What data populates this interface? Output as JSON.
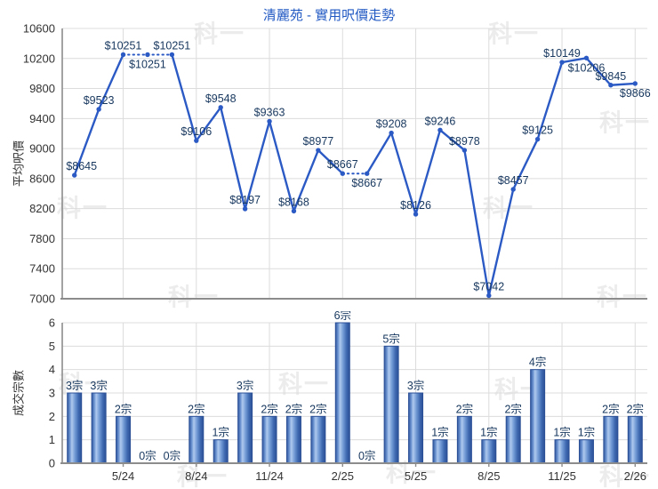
{
  "title": "清麗苑 - 實用呎價走勢",
  "watermark": {
    "text": "科一"
  },
  "colors": {
    "title": "#2159C3",
    "line": "#2C5AC5",
    "data_label": "#17375E",
    "bar_border": "#2B4F96",
    "grid": "#DCDCDC",
    "axis": "#8C8C8C",
    "axis_text": "#333333",
    "watermark": "#ECECEC",
    "background": "#FFFFFF"
  },
  "chart_data": [
    {
      "type": "line",
      "title": "清麗苑 - 實用呎價走勢",
      "ylabel": "平均呎價",
      "ylim": [
        7000,
        10600
      ],
      "ytick_step": 400,
      "ytick_labels": [
        "7000",
        "7400",
        "7800",
        "8200",
        "8600",
        "9000",
        "9400",
        "9800",
        "10200",
        "10600"
      ],
      "n_points": 24,
      "values": [
        8645,
        9523,
        10251,
        10251,
        10251,
        9106,
        9548,
        8197,
        9363,
        8168,
        8977,
        8667,
        8667,
        9208,
        8126,
        9246,
        8978,
        7042,
        8457,
        9125,
        10149,
        10206,
        9845,
        9866
      ],
      "point_labels": [
        "$8645",
        "$9523",
        "$10251",
        "$10251",
        "$10251",
        "$9106",
        "$9548",
        "$8197",
        "$9363",
        "$8168",
        "$8977",
        "$8667",
        "$8667",
        "$9208",
        "$8126",
        "$9246",
        "$8978",
        "$7042",
        "$8457",
        "$9125",
        "$10149",
        "$10206",
        "$9845",
        "$9866"
      ],
      "dotted_segments": [
        [
          2,
          3
        ],
        [
          3,
          4
        ],
        [
          11,
          12
        ]
      ],
      "label_side": [
        "above",
        "above",
        "above",
        "below",
        "above",
        "above",
        "above",
        "above",
        "above",
        "above",
        "above",
        "above",
        "below",
        "above",
        "above",
        "above",
        "above",
        "above",
        "above",
        "above",
        "above",
        "below",
        "above",
        "below"
      ],
      "xtick_labels": [
        "5/24",
        "8/24",
        "11/24",
        "2/25",
        "5/25",
        "8/25",
        "11/25",
        "2/26"
      ],
      "xtick_indices": [
        2,
        5,
        8,
        11,
        14,
        17,
        20,
        23
      ],
      "grid": true,
      "legend": "none"
    },
    {
      "type": "bar",
      "ylabel": "成交宗數",
      "ylim": [
        0,
        6
      ],
      "ytick_step": 1,
      "ytick_labels": [
        "0",
        "1",
        "2",
        "3",
        "4",
        "5",
        "6"
      ],
      "values": [
        3,
        3,
        2,
        0,
        0,
        2,
        1,
        3,
        2,
        2,
        2,
        6,
        0,
        5,
        3,
        1,
        2,
        1,
        2,
        4,
        1,
        1,
        2,
        2
      ],
      "bar_labels": [
        "3宗",
        "3宗",
        "2宗",
        "0宗",
        "0宗",
        "2宗",
        "1宗",
        "3宗",
        "2宗",
        "2宗",
        "2宗",
        "6宗",
        "0宗",
        "5宗",
        "3宗",
        "1宗",
        "2宗",
        "1宗",
        "2宗",
        "4宗",
        "1宗",
        "1宗",
        "2宗",
        "2宗"
      ],
      "xtick_labels": [
        "5/24",
        "8/24",
        "11/24",
        "2/25",
        "5/25",
        "8/25",
        "11/25",
        "2/26"
      ],
      "xtick_indices": [
        2,
        5,
        8,
        11,
        14,
        17,
        20,
        23
      ],
      "grid": true,
      "legend": "none"
    }
  ]
}
